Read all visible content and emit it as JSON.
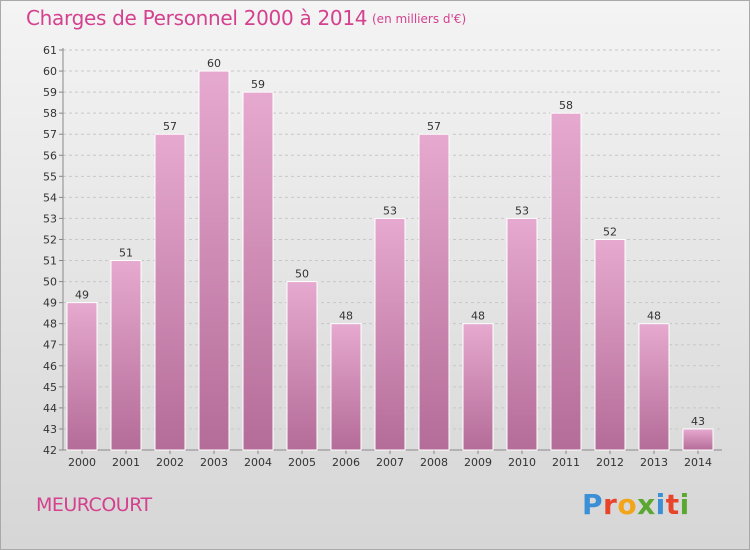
{
  "header": {
    "title": "Charges de Personnel 2000 à 2014",
    "subtitle": "(en milliers d'€)"
  },
  "footer": {
    "town": "MEURCOURT",
    "logo": "Proxiti"
  },
  "colors": {
    "title": "#d4418e",
    "bar_top": "#e6a9cf",
    "bar_bottom": "#b46c98",
    "logo_letters": [
      "#3a8fd6",
      "#e8442c",
      "#f2a51a",
      "#5aa832",
      "#3a8fd6",
      "#e8442c",
      "#5aa832"
    ]
  },
  "chart_data": {
    "type": "bar",
    "title": "Charges de Personnel 2000 à 2014",
    "subtitle": "(en milliers d'€)",
    "xlabel": "",
    "ylabel": "",
    "categories": [
      "2000",
      "2001",
      "2002",
      "2003",
      "2004",
      "2005",
      "2006",
      "2007",
      "2008",
      "2009",
      "2010",
      "2011",
      "2012",
      "2013",
      "2014"
    ],
    "values": [
      49,
      51,
      57,
      60,
      59,
      50,
      48,
      53,
      57,
      48,
      53,
      58,
      52,
      48,
      43
    ],
    "ylim": [
      42,
      61
    ],
    "yticks": [
      42,
      43,
      44,
      45,
      46,
      47,
      48,
      49,
      50,
      51,
      52,
      53,
      54,
      55,
      56,
      57,
      58,
      59,
      60,
      61
    ],
    "grid": true,
    "data_labels": true
  }
}
